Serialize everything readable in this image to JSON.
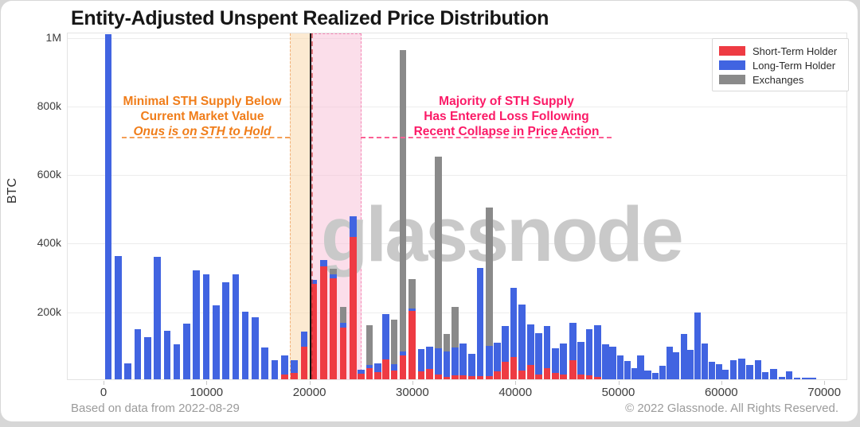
{
  "page": {
    "title": "Entity-Adjusted Unspent Realized Price Distribution",
    "watermark": "glassnode",
    "footer_left": "Based on data from 2022-08-29",
    "footer_right": "© 2022 Glassnode. All Rights Reserved.",
    "y_axis_label": "BTC"
  },
  "legend": {
    "items": [
      {
        "label": "Short-Term Holder",
        "color": "#ee3b43"
      },
      {
        "label": "Long-Term Holder",
        "color": "#4164e1"
      },
      {
        "label": "Exchanges",
        "color": "#8a8a8a"
      }
    ]
  },
  "annotations": {
    "orange": {
      "lines": [
        "Minimal STH Supply Below",
        "Current Market Value",
        "Onus is on STH to Hold"
      ],
      "color": "#f07d1a",
      "highlight_region_usd": [
        18000,
        20000
      ]
    },
    "pink": {
      "lines": [
        "Majority of STH Supply",
        "Has Entered Loss Following",
        "Recent Collapse in Price Action"
      ],
      "color": "#fb1a67",
      "highlight_region_usd": [
        20000,
        25000
      ]
    },
    "current_price_line_usd": 20000
  },
  "chart_data": {
    "type": "bar",
    "stacked": true,
    "title": "Entity-Adjusted Unspent Realized Price Distribution",
    "xlabel": "",
    "ylabel": "BTC",
    "xlim": [
      -3550,
      72250
    ],
    "ylim": [
      0,
      1013000
    ],
    "grid": true,
    "legend_position": "top-right",
    "x_ticks": [
      0,
      10000,
      20000,
      30000,
      40000,
      50000,
      60000,
      70000
    ],
    "y_ticks": [
      {
        "value": 200000,
        "label": "200k"
      },
      {
        "value": 400000,
        "label": "400k"
      },
      {
        "value": 600000,
        "label": "600k"
      },
      {
        "value": 800000,
        "label": "800k"
      },
      {
        "value": 1000000,
        "label": "1M"
      }
    ],
    "series_names": [
      "Short-Term Holder",
      "Long-Term Holder",
      "Exchanges"
    ],
    "bars_format": [
      "price_usd",
      "short_term_holder_btc",
      "long_term_holder_btc",
      "exchanges_btc"
    ],
    "bars": [
      [
        400,
        0,
        1005000,
        0
      ],
      [
        1350,
        0,
        360000,
        0
      ],
      [
        2300,
        0,
        47000,
        0
      ],
      [
        3250,
        0,
        145000,
        0
      ],
      [
        4200,
        0,
        122000,
        0
      ],
      [
        5150,
        0,
        358000,
        0
      ],
      [
        6100,
        0,
        142000,
        0
      ],
      [
        7050,
        0,
        103000,
        0
      ],
      [
        8000,
        0,
        163000,
        0
      ],
      [
        8950,
        0,
        318000,
        0
      ],
      [
        9900,
        0,
        307000,
        0
      ],
      [
        10850,
        0,
        215000,
        0
      ],
      [
        11800,
        0,
        283000,
        0
      ],
      [
        12750,
        0,
        305000,
        0
      ],
      [
        13700,
        0,
        198000,
        0
      ],
      [
        14650,
        0,
        180000,
        0
      ],
      [
        15600,
        0,
        93000,
        0
      ],
      [
        16550,
        0,
        55000,
        0
      ],
      [
        17500,
        14000,
        55000,
        0
      ],
      [
        18450,
        18000,
        37000,
        0
      ],
      [
        19400,
        95000,
        45000,
        0
      ],
      [
        20350,
        277000,
        12000,
        0
      ],
      [
        21300,
        330000,
        18000,
        0
      ],
      [
        22250,
        295000,
        12000,
        15000
      ],
      [
        23200,
        150000,
        15000,
        45000
      ],
      [
        24150,
        415000,
        60000,
        0
      ],
      [
        24950,
        16000,
        12000,
        0
      ],
      [
        25750,
        33000,
        8000,
        116000
      ],
      [
        26550,
        20000,
        26000,
        0
      ],
      [
        27350,
        59000,
        130000,
        0
      ],
      [
        28150,
        25000,
        20000,
        130000
      ],
      [
        29000,
        70000,
        10000,
        880000
      ],
      [
        29900,
        200000,
        7000,
        86000
      ],
      [
        30800,
        24000,
        64000,
        0
      ],
      [
        31600,
        30000,
        65000,
        0
      ],
      [
        32450,
        15000,
        75000,
        560000
      ],
      [
        33250,
        8000,
        74000,
        50000
      ],
      [
        34050,
        12000,
        81000,
        118000
      ],
      [
        34850,
        12000,
        93000,
        0
      ],
      [
        35700,
        10000,
        64000,
        0
      ],
      [
        36500,
        10000,
        315000,
        0
      ],
      [
        37400,
        10000,
        88000,
        402000
      ],
      [
        38150,
        24000,
        82000,
        0
      ],
      [
        38950,
        51000,
        104000,
        0
      ],
      [
        39750,
        64000,
        202000,
        0
      ],
      [
        40550,
        25000,
        194000,
        0
      ],
      [
        41400,
        41000,
        120000,
        0
      ],
      [
        42200,
        15000,
        119000,
        0
      ],
      [
        43000,
        32000,
        123000,
        0
      ],
      [
        43800,
        18000,
        72000,
        0
      ],
      [
        44600,
        15000,
        90000,
        0
      ],
      [
        45500,
        55000,
        110000,
        0
      ],
      [
        46300,
        15000,
        95000,
        0
      ],
      [
        47100,
        12000,
        135000,
        0
      ],
      [
        47900,
        8000,
        150000,
        0
      ],
      [
        48700,
        0,
        103000,
        0
      ],
      [
        49400,
        0,
        95000,
        0
      ],
      [
        50100,
        0,
        70000,
        0
      ],
      [
        50800,
        0,
        53000,
        0
      ],
      [
        51500,
        0,
        33000,
        0
      ],
      [
        52100,
        0,
        70000,
        0
      ],
      [
        52800,
        0,
        26000,
        0
      ],
      [
        53500,
        0,
        18000,
        0
      ],
      [
        54200,
        0,
        39000,
        0
      ],
      [
        54900,
        0,
        95000,
        0
      ],
      [
        55500,
        0,
        78000,
        0
      ],
      [
        56300,
        0,
        131000,
        0
      ],
      [
        56900,
        0,
        86000,
        0
      ],
      [
        57600,
        0,
        195000,
        0
      ],
      [
        58300,
        0,
        105000,
        0
      ],
      [
        59000,
        0,
        51000,
        0
      ],
      [
        59700,
        0,
        43000,
        0
      ],
      [
        60300,
        0,
        28000,
        0
      ],
      [
        61100,
        0,
        55000,
        0
      ],
      [
        61900,
        0,
        61000,
        0
      ],
      [
        62700,
        0,
        41000,
        0
      ],
      [
        63500,
        0,
        55000,
        0
      ],
      [
        64200,
        0,
        20000,
        0
      ],
      [
        65000,
        0,
        31000,
        0
      ],
      [
        65800,
        0,
        8000,
        0
      ],
      [
        66500,
        0,
        24000,
        0
      ],
      [
        67300,
        0,
        5000,
        0
      ],
      [
        68100,
        0,
        5000,
        0
      ],
      [
        68800,
        0,
        4000,
        0
      ]
    ]
  }
}
